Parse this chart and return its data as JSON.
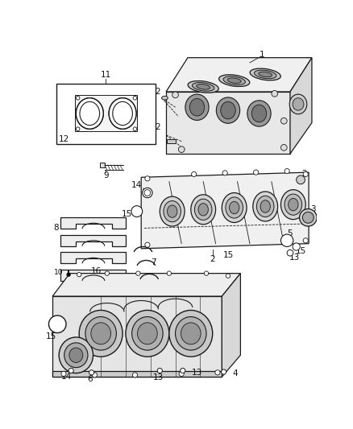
{
  "background_color": "#ffffff",
  "figure_width": 4.38,
  "figure_height": 5.33,
  "dpi": 100,
  "lc": "#1a1a1a",
  "tc": "#111111",
  "fs": 7.5
}
